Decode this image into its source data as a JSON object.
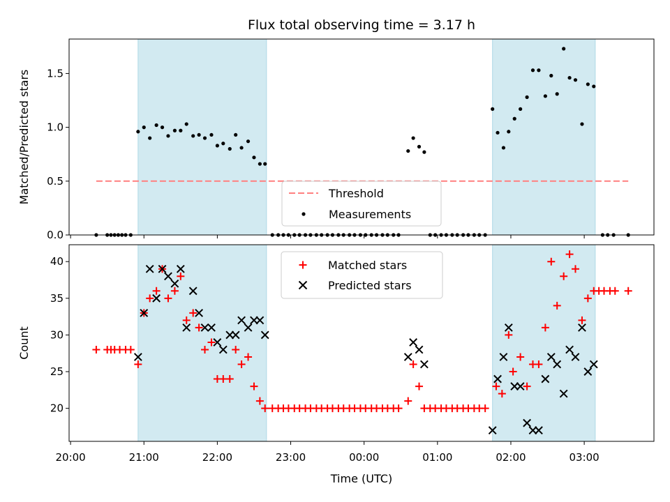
{
  "chart_data": {
    "type": "scatter",
    "title": "Flux total observing time = 3.17 h",
    "xlabel": "Time (UTC)",
    "x_tick_labels": [
      "20:00",
      "21:00",
      "22:00",
      "23:00",
      "00:00",
      "01:00",
      "02:00",
      "03:00"
    ],
    "x_tick_hours": [
      0,
      1,
      2,
      3,
      4,
      5,
      6,
      7
    ],
    "x_range_hours": [
      -0.02,
      7.95
    ],
    "x_hours_from": "20:00",
    "shaded_spans_hours": [
      [
        0.92,
        2.67
      ],
      [
        5.75,
        7.15
      ]
    ],
    "shade_color": "#add8e6",
    "panels": [
      {
        "id": "ratio",
        "ylabel": "Matched/Predicted stars",
        "ylim": [
          0,
          1.82
        ],
        "y_ticks": [
          0.0,
          0.5,
          1.0,
          1.5
        ],
        "y_tick_labels": [
          "0.0",
          "0.5",
          "1.0",
          "1.5"
        ],
        "threshold": {
          "label": "Threshold",
          "value": 0.5,
          "x_range_hours": [
            0.35,
            7.6
          ],
          "color": "#ff7f7f"
        },
        "legend": {
          "placement": "lower-center",
          "entries": [
            "Threshold",
            "Measurements"
          ]
        },
        "series": [
          {
            "name": "Measurements",
            "marker": "dot",
            "color": "#000000",
            "points": [
              [
                0.35,
                0
              ],
              [
                0.5,
                0
              ],
              [
                0.55,
                0
              ],
              [
                0.6,
                0
              ],
              [
                0.65,
                0
              ],
              [
                0.7,
                0
              ],
              [
                0.75,
                0
              ],
              [
                0.82,
                0
              ],
              [
                0.92,
                0.96
              ],
              [
                1.0,
                1.0
              ],
              [
                1.08,
                0.9
              ],
              [
                1.17,
                1.02
              ],
              [
                1.25,
                1.0
              ],
              [
                1.33,
                0.92
              ],
              [
                1.42,
                0.97
              ],
              [
                1.5,
                0.97
              ],
              [
                1.58,
                1.03
              ],
              [
                1.67,
                0.92
              ],
              [
                1.75,
                0.93
              ],
              [
                1.83,
                0.9
              ],
              [
                1.92,
                0.93
              ],
              [
                2.0,
                0.83
              ],
              [
                2.08,
                0.85
              ],
              [
                2.17,
                0.8
              ],
              [
                2.25,
                0.93
              ],
              [
                2.33,
                0.81
              ],
              [
                2.42,
                0.87
              ],
              [
                2.5,
                0.72
              ],
              [
                2.58,
                0.66
              ],
              [
                2.65,
                0.66
              ],
              [
                2.75,
                0
              ],
              [
                2.83,
                0
              ],
              [
                2.9,
                0
              ],
              [
                2.97,
                0
              ],
              [
                3.05,
                0
              ],
              [
                3.12,
                0
              ],
              [
                3.2,
                0
              ],
              [
                3.27,
                0
              ],
              [
                3.35,
                0
              ],
              [
                3.42,
                0
              ],
              [
                3.5,
                0
              ],
              [
                3.57,
                0
              ],
              [
                3.65,
                0
              ],
              [
                3.72,
                0
              ],
              [
                3.8,
                0
              ],
              [
                3.87,
                0
              ],
              [
                3.95,
                0
              ],
              [
                4.02,
                0
              ],
              [
                4.1,
                0
              ],
              [
                4.17,
                0
              ],
              [
                4.25,
                0
              ],
              [
                4.32,
                0
              ],
              [
                4.4,
                0
              ],
              [
                4.47,
                0
              ],
              [
                4.6,
                0.78
              ],
              [
                4.67,
                0.9
              ],
              [
                4.75,
                0.82
              ],
              [
                4.82,
                0.77
              ],
              [
                4.9,
                0
              ],
              [
                4.97,
                0
              ],
              [
                5.05,
                0
              ],
              [
                5.12,
                0
              ],
              [
                5.2,
                0
              ],
              [
                5.27,
                0
              ],
              [
                5.35,
                0
              ],
              [
                5.42,
                0
              ],
              [
                5.5,
                0
              ],
              [
                5.57,
                0
              ],
              [
                5.65,
                0
              ],
              [
                5.75,
                1.17
              ],
              [
                5.82,
                0.95
              ],
              [
                5.9,
                0.81
              ],
              [
                5.97,
                0.96
              ],
              [
                6.05,
                1.08
              ],
              [
                6.13,
                1.17
              ],
              [
                6.22,
                1.28
              ],
              [
                6.3,
                1.53
              ],
              [
                6.38,
                1.53
              ],
              [
                6.47,
                1.29
              ],
              [
                6.55,
                1.48
              ],
              [
                6.63,
                1.31
              ],
              [
                6.72,
                1.73
              ],
              [
                6.8,
                1.46
              ],
              [
                6.88,
                1.44
              ],
              [
                6.97,
                1.03
              ],
              [
                7.05,
                1.4
              ],
              [
                7.13,
                1.38
              ],
              [
                7.25,
                0
              ],
              [
                7.32,
                0
              ],
              [
                7.4,
                0
              ],
              [
                7.6,
                0
              ]
            ]
          }
        ]
      },
      {
        "id": "counts",
        "ylabel": "Count",
        "ylim": [
          15.5,
          42.3
        ],
        "y_ticks": [
          20,
          25,
          30,
          35,
          40
        ],
        "y_tick_labels": [
          "20",
          "25",
          "30",
          "35",
          "40"
        ],
        "legend": {
          "placement": "upper-center",
          "entries": [
            "Matched stars",
            "Predicted stars"
          ]
        },
        "series": [
          {
            "name": "Matched stars",
            "marker": "plus",
            "color": "#ff0000",
            "points": [
              [
                0.35,
                28
              ],
              [
                0.5,
                28
              ],
              [
                0.55,
                28
              ],
              [
                0.6,
                28
              ],
              [
                0.67,
                28
              ],
              [
                0.75,
                28
              ],
              [
                0.82,
                28
              ],
              [
                0.92,
                26
              ],
              [
                1.0,
                33
              ],
              [
                1.08,
                35
              ],
              [
                1.17,
                36
              ],
              [
                1.25,
                39
              ],
              [
                1.33,
                35
              ],
              [
                1.42,
                36
              ],
              [
                1.5,
                38
              ],
              [
                1.58,
                32
              ],
              [
                1.67,
                33
              ],
              [
                1.75,
                31
              ],
              [
                1.83,
                28
              ],
              [
                1.92,
                29
              ],
              [
                2.0,
                24
              ],
              [
                2.08,
                24
              ],
              [
                2.17,
                24
              ],
              [
                2.25,
                28
              ],
              [
                2.33,
                26
              ],
              [
                2.42,
                27
              ],
              [
                2.5,
                23
              ],
              [
                2.58,
                21
              ],
              [
                2.65,
                20
              ],
              [
                2.75,
                20
              ],
              [
                2.83,
                20
              ],
              [
                2.9,
                20
              ],
              [
                2.97,
                20
              ],
              [
                3.05,
                20
              ],
              [
                3.12,
                20
              ],
              [
                3.2,
                20
              ],
              [
                3.27,
                20
              ],
              [
                3.35,
                20
              ],
              [
                3.42,
                20
              ],
              [
                3.5,
                20
              ],
              [
                3.57,
                20
              ],
              [
                3.65,
                20
              ],
              [
                3.72,
                20
              ],
              [
                3.8,
                20
              ],
              [
                3.87,
                20
              ],
              [
                3.95,
                20
              ],
              [
                4.02,
                20
              ],
              [
                4.1,
                20
              ],
              [
                4.17,
                20
              ],
              [
                4.25,
                20
              ],
              [
                4.32,
                20
              ],
              [
                4.4,
                20
              ],
              [
                4.47,
                20
              ],
              [
                4.6,
                21
              ],
              [
                4.67,
                26
              ],
              [
                4.75,
                23
              ],
              [
                4.82,
                20
              ],
              [
                4.9,
                20
              ],
              [
                4.97,
                20
              ],
              [
                5.05,
                20
              ],
              [
                5.12,
                20
              ],
              [
                5.2,
                20
              ],
              [
                5.27,
                20
              ],
              [
                5.35,
                20
              ],
              [
                5.42,
                20
              ],
              [
                5.5,
                20
              ],
              [
                5.57,
                20
              ],
              [
                5.65,
                20
              ],
              [
                5.8,
                23
              ],
              [
                5.88,
                22
              ],
              [
                5.97,
                30
              ],
              [
                6.03,
                25
              ],
              [
                6.13,
                27
              ],
              [
                6.22,
                23
              ],
              [
                6.3,
                26
              ],
              [
                6.38,
                26
              ],
              [
                6.47,
                31
              ],
              [
                6.55,
                40
              ],
              [
                6.63,
                34
              ],
              [
                6.72,
                38
              ],
              [
                6.8,
                41
              ],
              [
                6.88,
                39
              ],
              [
                6.97,
                32
              ],
              [
                7.05,
                35
              ],
              [
                7.13,
                36
              ],
              [
                7.2,
                36
              ],
              [
                7.27,
                36
              ],
              [
                7.35,
                36
              ],
              [
                7.42,
                36
              ],
              [
                7.6,
                36
              ]
            ]
          },
          {
            "name": "Predicted stars",
            "marker": "x",
            "color": "#000000",
            "points": [
              [
                0.92,
                27
              ],
              [
                1.0,
                33
              ],
              [
                1.08,
                39
              ],
              [
                1.17,
                35
              ],
              [
                1.25,
                39
              ],
              [
                1.33,
                38
              ],
              [
                1.42,
                37
              ],
              [
                1.5,
                39
              ],
              [
                1.58,
                31
              ],
              [
                1.67,
                36
              ],
              [
                1.75,
                33
              ],
              [
                1.83,
                31
              ],
              [
                1.92,
                31
              ],
              [
                2.0,
                29
              ],
              [
                2.08,
                28
              ],
              [
                2.17,
                30
              ],
              [
                2.25,
                30
              ],
              [
                2.33,
                32
              ],
              [
                2.42,
                31
              ],
              [
                2.5,
                32
              ],
              [
                2.58,
                32
              ],
              [
                2.65,
                30
              ],
              [
                4.6,
                27
              ],
              [
                4.67,
                29
              ],
              [
                4.75,
                28
              ],
              [
                4.82,
                26
              ],
              [
                5.75,
                17
              ],
              [
                5.82,
                24
              ],
              [
                5.9,
                27
              ],
              [
                5.97,
                31
              ],
              [
                6.05,
                23
              ],
              [
                6.13,
                23
              ],
              [
                6.22,
                18
              ],
              [
                6.3,
                17
              ],
              [
                6.38,
                17
              ],
              [
                6.47,
                24
              ],
              [
                6.55,
                27
              ],
              [
                6.63,
                26
              ],
              [
                6.72,
                22
              ],
              [
                6.8,
                28
              ],
              [
                6.88,
                27
              ],
              [
                6.97,
                31
              ],
              [
                7.05,
                25
              ],
              [
                7.13,
                26
              ]
            ]
          }
        ]
      }
    ]
  }
}
